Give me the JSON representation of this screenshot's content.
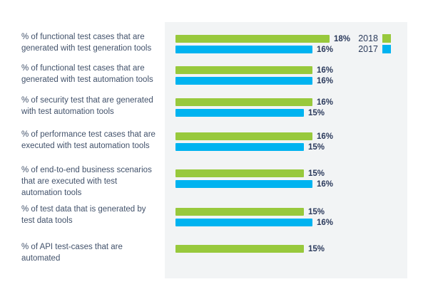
{
  "chart_data": {
    "type": "bar",
    "orientation": "horizontal",
    "title": "",
    "unit": "%",
    "grid": false,
    "legend_position": "top-right",
    "value_axis_range": [
      0,
      28
    ],
    "legend": [
      {
        "name": "2018",
        "color": "#98c93c"
      },
      {
        "name": "2017",
        "color": "#00b3f0"
      }
    ],
    "categories": [
      "% of functional test cases that are\ngenerated with test generation tools",
      "% of functional test cases that are\ngenerated with test automation tools",
      "% of security test that are generated\nwith test automation tools",
      "% of performance test cases that are\nexecuted with test automation tools",
      "% of end-to-end business scenarios\nthat are executed with test\nautomation tools",
      "% of test data that is generated by\ntest data tools",
      "% of API test-cases that are\nautomated"
    ],
    "series": [
      {
        "name": "2018",
        "values": [
          18,
          16,
          16,
          16,
          15,
          15,
          15
        ]
      },
      {
        "name": "2017",
        "values": [
          16,
          16,
          15,
          15,
          16,
          16,
          null
        ]
      }
    ]
  },
  "colors": {
    "plot_background": "#f2f4f5",
    "category_text": "#42526b",
    "value_text": "#2b3a5c",
    "legend_text": "#2c3c5c"
  }
}
